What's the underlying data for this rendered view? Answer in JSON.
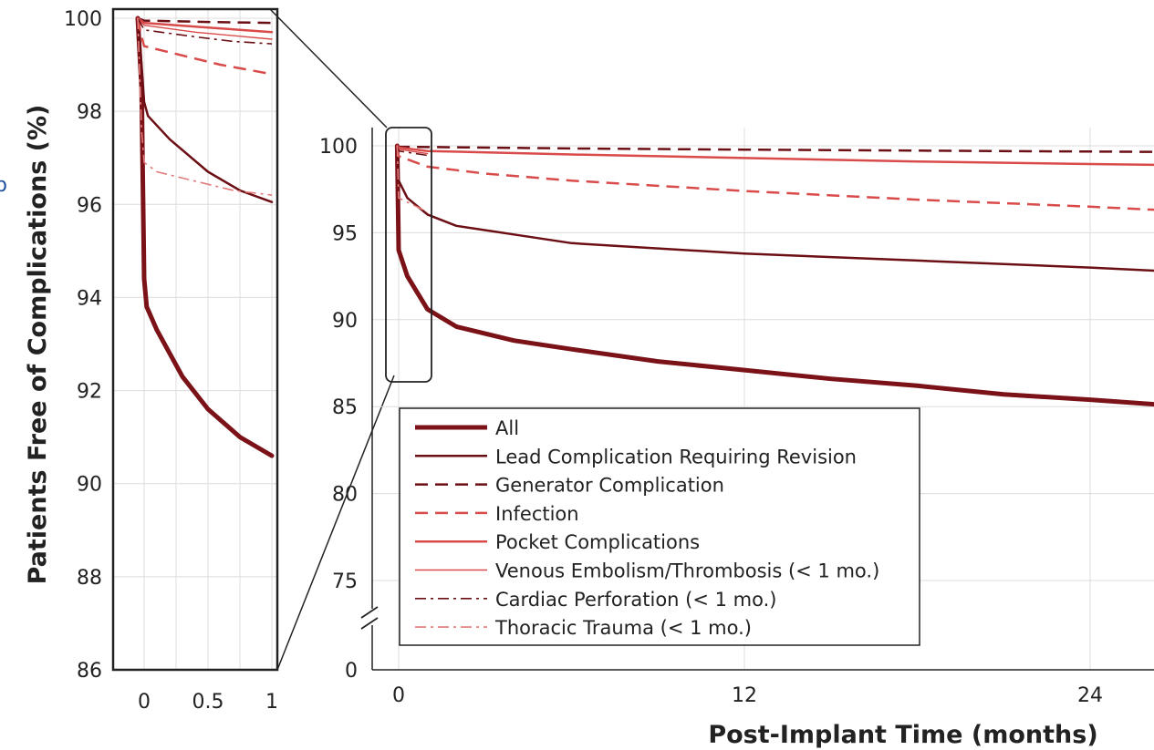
{
  "panel_label": "b",
  "chart_data": [
    {
      "type": "line",
      "panel": "inset",
      "title": "",
      "xlabel": "",
      "ylabel": "Patients Free of Complications (%)",
      "xlim": [
        -0.2,
        1
      ],
      "ylim": [
        86,
        100
      ],
      "x_ticks": [
        "0",
        "0.5",
        "1"
      ],
      "y_ticks": [
        "86",
        "88",
        "90",
        "92",
        "94",
        "96",
        "98",
        "100"
      ],
      "grid": true,
      "series": [
        {
          "name": "All",
          "color": "#7a1218",
          "style": "solid",
          "width": 5,
          "points": [
            [
              -0.05,
              100
            ],
            [
              -0.02,
              98.5
            ],
            [
              0,
              94.4
            ],
            [
              0.02,
              93.8
            ],
            [
              0.1,
              93.3
            ],
            [
              0.3,
              92.3
            ],
            [
              0.5,
              91.6
            ],
            [
              0.75,
              91.0
            ],
            [
              1,
              90.6
            ]
          ]
        },
        {
          "name": "Lead Complication Requiring Revision",
          "color": "#6b0f15",
          "style": "solid",
          "width": 2.5,
          "points": [
            [
              -0.05,
              100
            ],
            [
              -0.02,
              99.0
            ],
            [
              0,
              98.2
            ],
            [
              0.03,
              97.9
            ],
            [
              0.2,
              97.4
            ],
            [
              0.5,
              96.7
            ],
            [
              0.75,
              96.3
            ],
            [
              1,
              96.05
            ]
          ]
        },
        {
          "name": "Generator Complication",
          "color": "#6b0f15",
          "style": "dash",
          "width": 2.5,
          "points": [
            [
              -0.05,
              100
            ],
            [
              0,
              99.95
            ],
            [
              0.5,
              99.92
            ],
            [
              1,
              99.9
            ]
          ]
        },
        {
          "name": "Infection",
          "color": "#d94b4b",
          "style": "dash",
          "width": 2.5,
          "points": [
            [
              -0.05,
              100
            ],
            [
              -0.02,
              99.6
            ],
            [
              0,
              99.4
            ],
            [
              0.3,
              99.2
            ],
            [
              0.6,
              99.0
            ],
            [
              1,
              98.8
            ]
          ]
        },
        {
          "name": "Pocket Complications",
          "color": "#d94b4b",
          "style": "solid",
          "width": 2.5,
          "points": [
            [
              -0.05,
              100
            ],
            [
              0,
              99.9
            ],
            [
              0.5,
              99.8
            ],
            [
              1,
              99.7
            ]
          ]
        },
        {
          "name": "Venous Embolism/Thrombosis (< 1 mo.)",
          "color": "#d94b4b",
          "style": "solid",
          "width": 1.4,
          "points": [
            [
              -0.05,
              100
            ],
            [
              0,
              99.85
            ],
            [
              0.4,
              99.7
            ],
            [
              1,
              99.55
            ]
          ]
        },
        {
          "name": "Cardiac Perforation (< 1 mo.)",
          "color": "#6b0f15",
          "style": "dashdot",
          "width": 1.6,
          "points": [
            [
              -0.05,
              100
            ],
            [
              0,
              99.75
            ],
            [
              0.4,
              99.6
            ],
            [
              0.7,
              99.5
            ],
            [
              1,
              99.45
            ]
          ]
        },
        {
          "name": "Thoracic Trauma (< 1 mo.)",
          "color": "#e27a7a",
          "style": "dashdot",
          "width": 1.6,
          "points": [
            [
              -0.05,
              100
            ],
            [
              -0.02,
              97.6
            ],
            [
              0,
              96.9
            ],
            [
              0.1,
              96.7
            ],
            [
              0.4,
              96.5
            ],
            [
              0.7,
              96.3
            ],
            [
              1,
              96.2
            ]
          ]
        }
      ]
    },
    {
      "type": "line",
      "panel": "main",
      "title": "",
      "xlabel": "Post-Implant Time (months)",
      "ylabel": "",
      "xlim": [
        -0.5,
        26.5
      ],
      "ylim": [
        75,
        100
      ],
      "y_break": true,
      "x_ticks": [
        "0",
        "12",
        "24"
      ],
      "y_ticks": [
        "0",
        "75",
        "80",
        "85",
        "90",
        "95",
        "100"
      ],
      "grid": true,
      "series": [
        {
          "name": "All",
          "color": "#7a1218",
          "style": "solid",
          "width": 5,
          "points": [
            [
              -0.05,
              100
            ],
            [
              0,
              94
            ],
            [
              0.3,
              92.5
            ],
            [
              1,
              90.6
            ],
            [
              2,
              89.6
            ],
            [
              4,
              88.8
            ],
            [
              6,
              88.3
            ],
            [
              9,
              87.6
            ],
            [
              12,
              87.1
            ],
            [
              15,
              86.6
            ],
            [
              18,
              86.2
            ],
            [
              21,
              85.7
            ],
            [
              24,
              85.4
            ],
            [
              26.5,
              85.1
            ]
          ]
        },
        {
          "name": "Lead Complication Requiring Revision",
          "color": "#6b0f15",
          "style": "solid",
          "width": 2.5,
          "points": [
            [
              -0.05,
              100
            ],
            [
              0,
              98
            ],
            [
              0.3,
              97.0
            ],
            [
              1,
              96.05
            ],
            [
              2,
              95.4
            ],
            [
              4,
              94.9
            ],
            [
              6,
              94.4
            ],
            [
              9,
              94.1
            ],
            [
              12,
              93.8
            ],
            [
              18,
              93.4
            ],
            [
              24,
              93.0
            ],
            [
              26.5,
              92.8
            ]
          ]
        },
        {
          "name": "Generator Complication",
          "color": "#6b0f15",
          "style": "dash",
          "width": 2.5,
          "points": [
            [
              -0.05,
              100
            ],
            [
              0,
              99.95
            ],
            [
              6,
              99.85
            ],
            [
              12,
              99.78
            ],
            [
              18,
              99.72
            ],
            [
              26.5,
              99.65
            ]
          ]
        },
        {
          "name": "Infection",
          "color": "#d94b4b",
          "style": "dash",
          "width": 2.5,
          "points": [
            [
              -0.05,
              100
            ],
            [
              0,
              99.4
            ],
            [
              1,
              98.8
            ],
            [
              3,
              98.4
            ],
            [
              6,
              98.0
            ],
            [
              12,
              97.4
            ],
            [
              18,
              96.9
            ],
            [
              24,
              96.5
            ],
            [
              26.5,
              96.3
            ]
          ]
        },
        {
          "name": "Pocket Complications",
          "color": "#d94b4b",
          "style": "solid",
          "width": 2.5,
          "points": [
            [
              -0.05,
              100
            ],
            [
              0,
              99.9
            ],
            [
              1,
              99.7
            ],
            [
              6,
              99.5
            ],
            [
              12,
              99.3
            ],
            [
              18,
              99.1
            ],
            [
              24,
              98.95
            ],
            [
              26.5,
              98.9
            ]
          ]
        },
        {
          "name": "Venous Embolism/Thrombosis (< 1 mo.)",
          "color": "#d94b4b",
          "style": "solid",
          "width": 1.4,
          "points": [
            [
              -0.05,
              100
            ],
            [
              0,
              99.8
            ],
            [
              1,
              99.55
            ]
          ]
        },
        {
          "name": "Cardiac Perforation (< 1 mo.)",
          "color": "#6b0f15",
          "style": "dashdot",
          "width": 1.6,
          "points": [
            [
              -0.05,
              100
            ],
            [
              0,
              99.7
            ],
            [
              1,
              99.45
            ]
          ]
        },
        {
          "name": "Thoracic Trauma (< 1 mo.)",
          "color": "#e27a7a",
          "style": "dashdot",
          "width": 1.6,
          "points": [
            [
              -0.05,
              100
            ],
            [
              0,
              97.0
            ],
            [
              1,
              96.2
            ]
          ]
        }
      ],
      "legend": {
        "placement": "bottom-left",
        "entries": [
          "All",
          "Lead Complication Requiring Revision",
          "Generator Complication",
          "Infection",
          "Pocket Complications",
          "Venous Embolism/Thrombosis (< 1 mo.)",
          "Cardiac Perforation (< 1 mo.)",
          "Thoracic Trauma (< 1 mo.)"
        ]
      }
    }
  ]
}
